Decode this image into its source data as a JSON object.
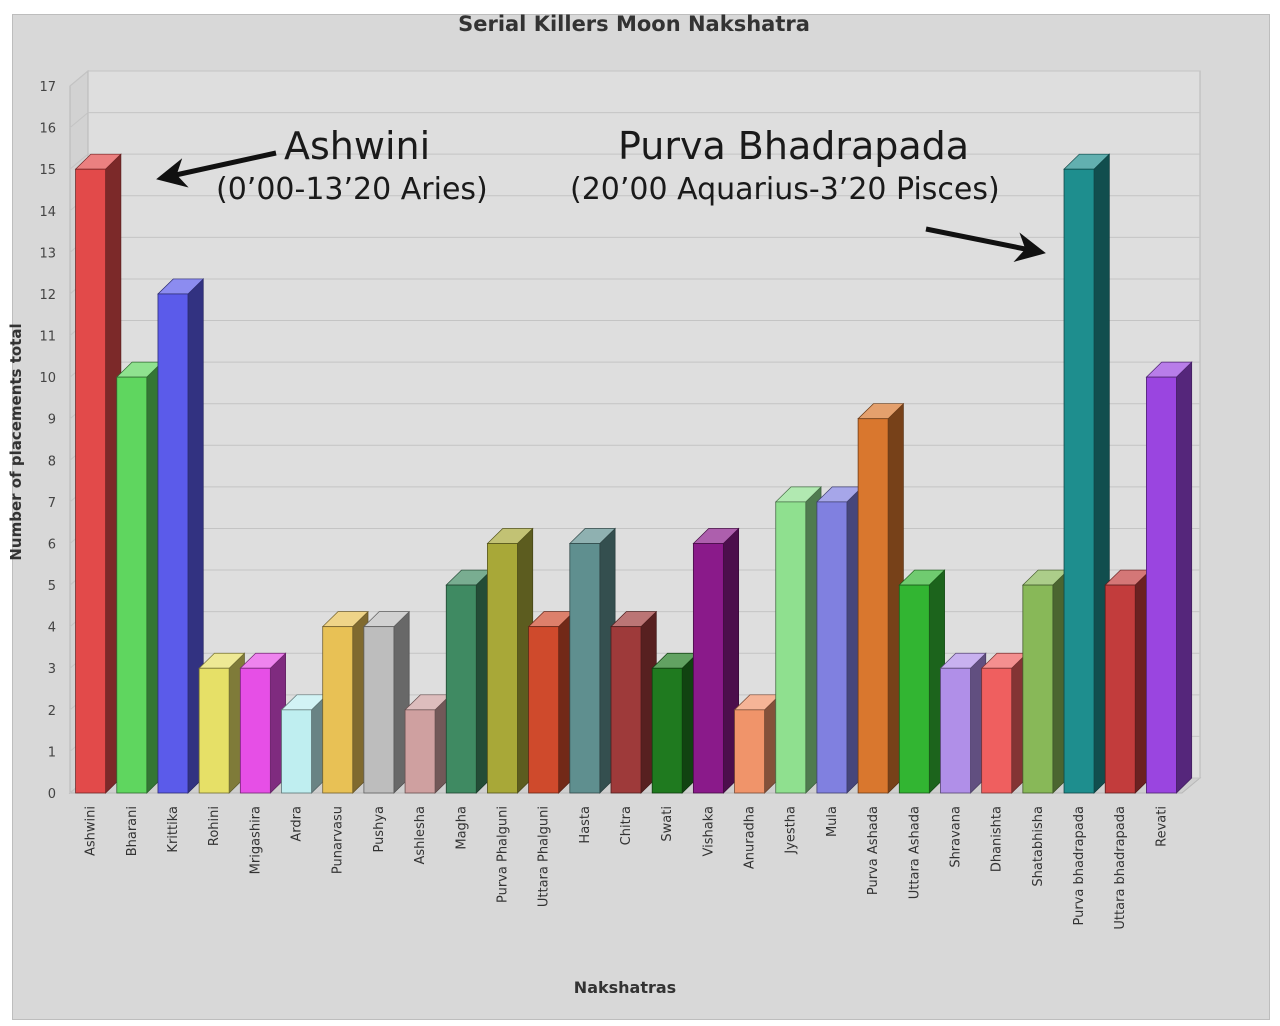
{
  "chart_data": {
    "type": "bar",
    "title": "Serial Killers Moon Nakshatra",
    "xlabel": "Nakshatras",
    "ylabel": "Number of placements total",
    "ylim": [
      0,
      17
    ],
    "yticks": [
      "0",
      "1",
      "2",
      "3",
      "4",
      "5",
      "6",
      "7",
      "8",
      "9",
      "10",
      "11",
      "12",
      "13",
      "14",
      "15",
      "16",
      "17"
    ],
    "grid": true,
    "style": "3d",
    "categories": [
      "Ashwini",
      "Bharani",
      "Krittika",
      "Rohini",
      "Mrigashira",
      "Ardra",
      "Punarvasu",
      "Pushya",
      "Ashlesha",
      "Magha",
      "Purva Phalguni",
      "Uttara Phalguni",
      "Hasta",
      "Chitra",
      "Swati",
      "Vishaka",
      "Anuradha",
      "Jyestha",
      "Mula",
      "Purva Ashada",
      "Uttara Ashada",
      "Shravana",
      "Dhanishta",
      "Shatabhisha",
      "Purva bhadrapada",
      "Uttara bhadrapada",
      "Revati"
    ],
    "values": [
      15,
      10,
      12,
      3,
      3,
      2,
      4,
      4,
      2,
      5,
      6,
      4,
      6,
      4,
      3,
      6,
      2,
      7,
      7,
      9,
      5,
      3,
      3,
      5,
      15,
      5,
      10
    ],
    "colors": [
      "#e24a4a",
      "#5fd65f",
      "#5b5bea",
      "#e6e067",
      "#e64fe6",
      "#bfeef0",
      "#e8c155",
      "#bdbdbd",
      "#cfa0a0",
      "#3f8a62",
      "#a8a838",
      "#cf4a2c",
      "#5f8f8f",
      "#9e3a3a",
      "#1f7a1f",
      "#8a1a8a",
      "#f0946a",
      "#8fe08f",
      "#8080e0",
      "#d9772e",
      "#32b532",
      "#b08fe8",
      "#ef5f5f",
      "#88b858",
      "#1e8e8e",
      "#c23c3c",
      "#9a45e0"
    ]
  },
  "annotations": [
    {
      "title": "Ashwini",
      "subtitle": "(0’00-13’20 Aries)"
    },
    {
      "title": "Purva Bhadrapada",
      "subtitle": "(20’00 Aquarius-3’20 Pisces)"
    }
  ]
}
